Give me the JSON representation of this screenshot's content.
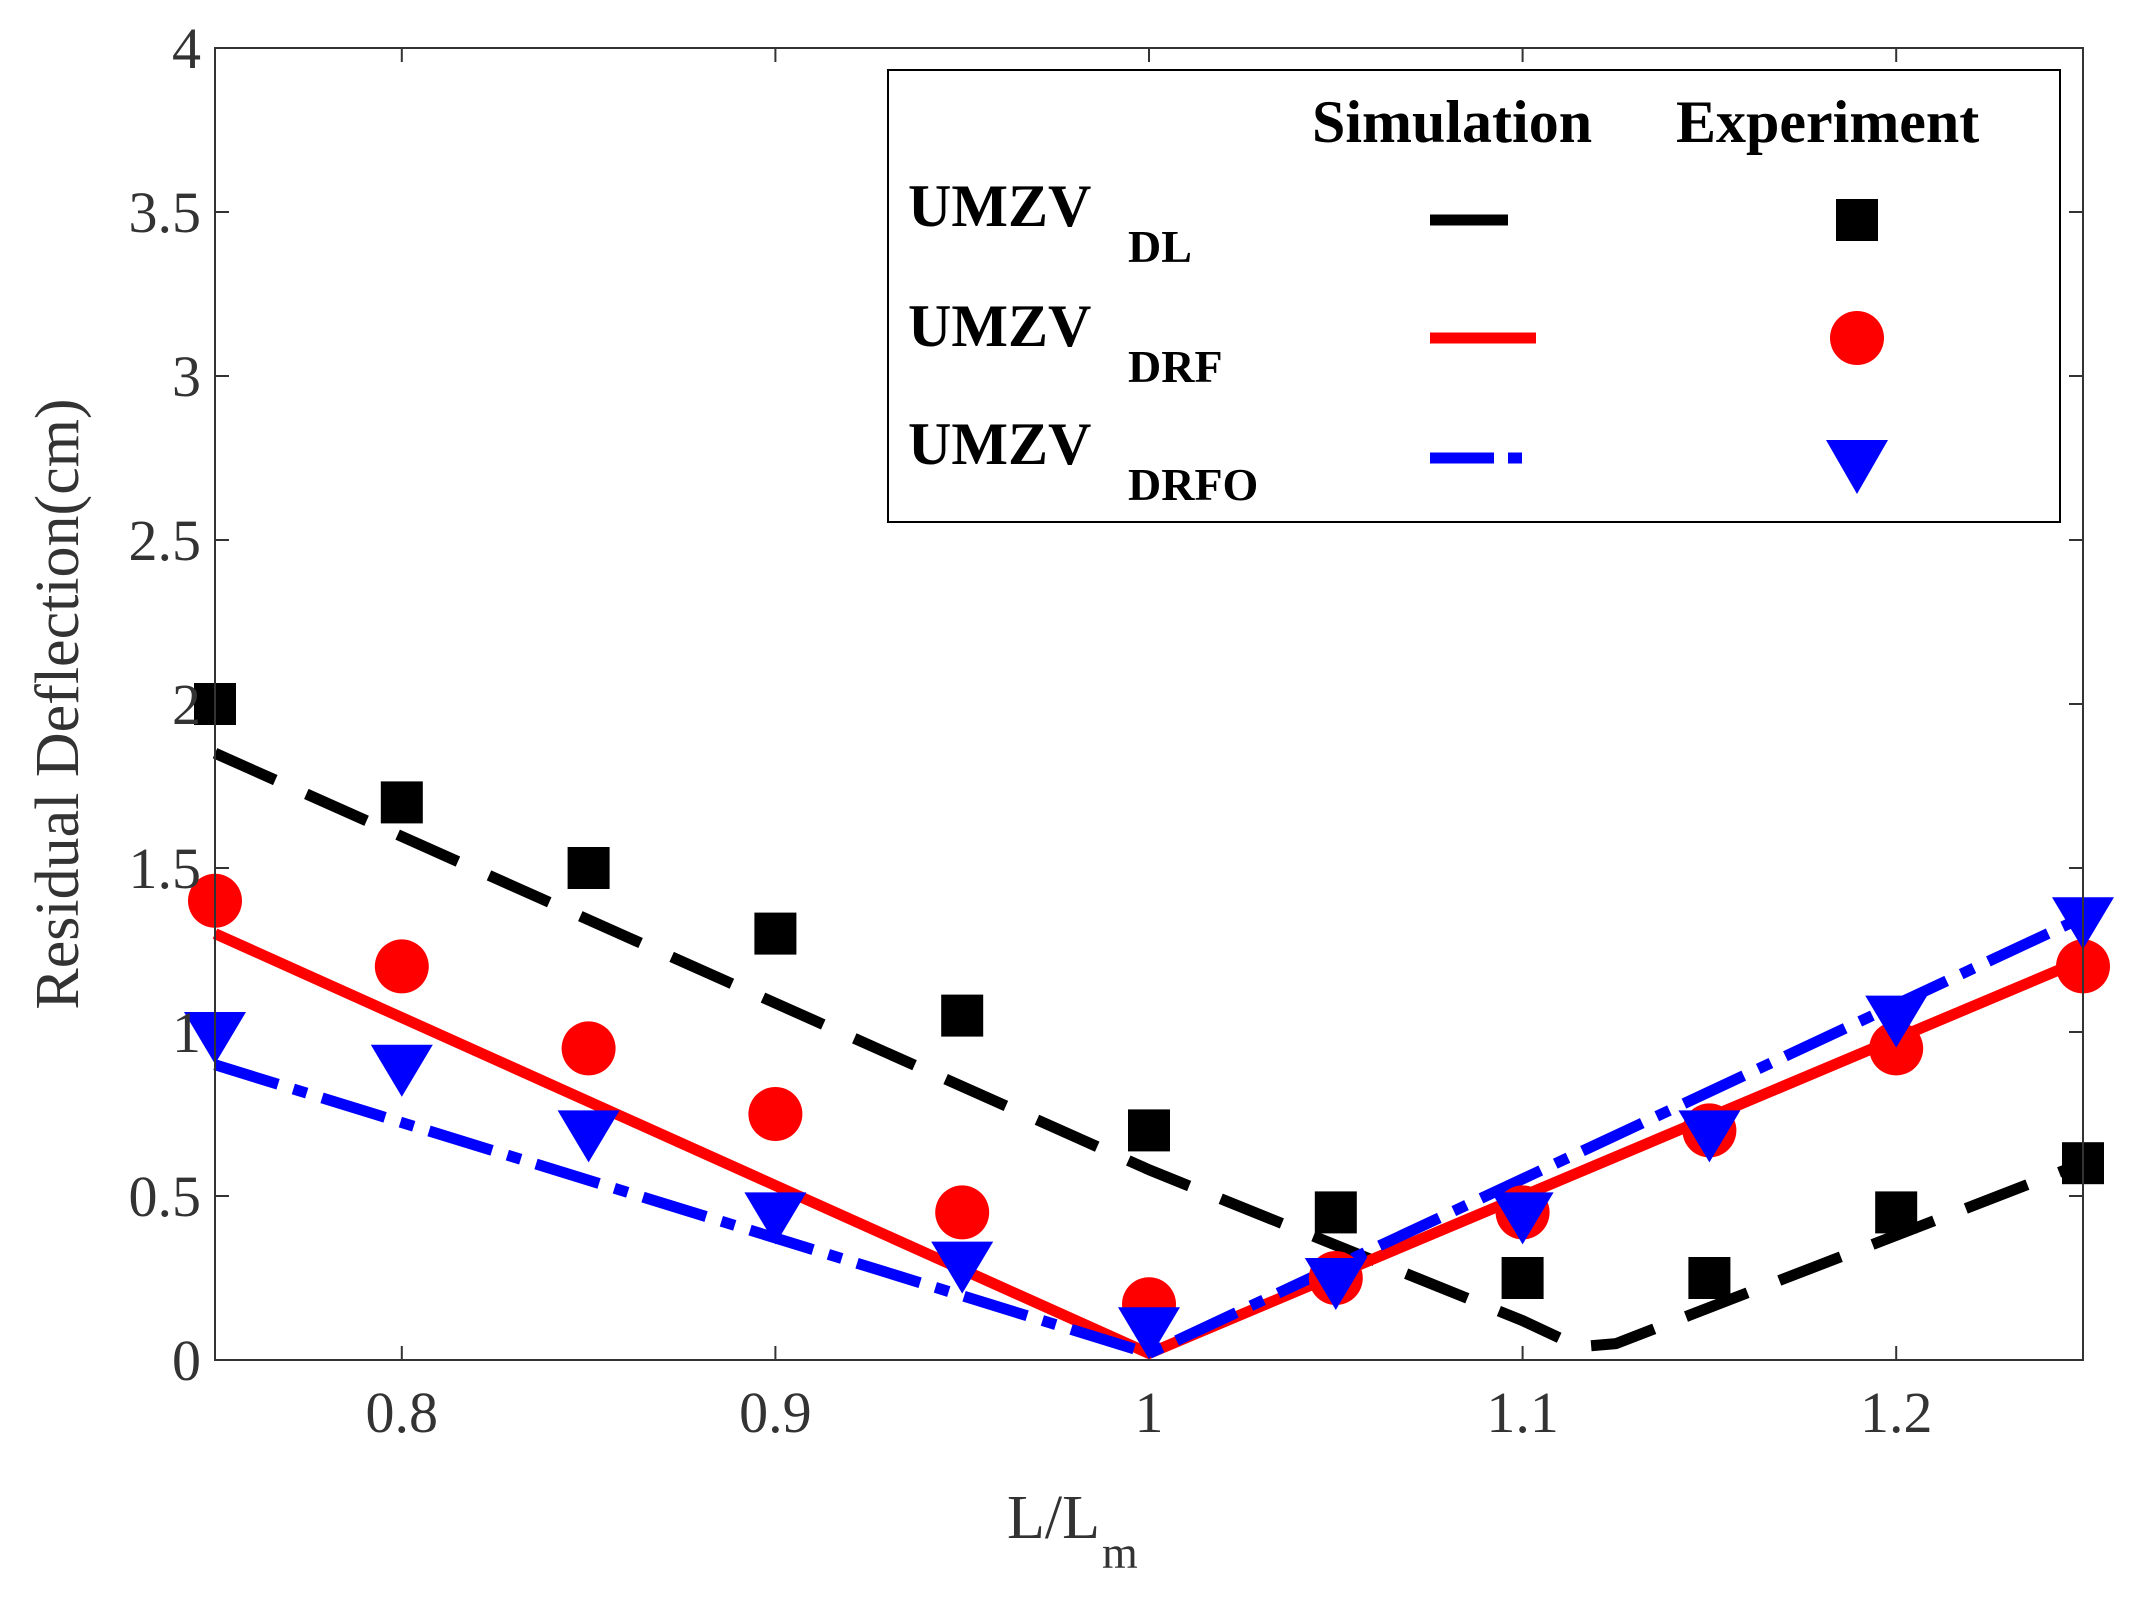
{
  "chart_data": {
    "type": "line",
    "title": "",
    "xlabel": "L/L",
    "xlabel_sub": "m",
    "ylabel": "Residual Deflection(cm)",
    "xlim": [
      0.75,
      1.25
    ],
    "ylim": [
      0,
      4
    ],
    "xticks": [
      0.8,
      0.9,
      1.0,
      1.1,
      1.2
    ],
    "xtick_labels": [
      "0.8",
      "0.9",
      "1",
      "1.1",
      "1.2"
    ],
    "yticks": [
      0,
      0.5,
      1,
      1.5,
      2,
      2.5,
      3,
      3.5,
      4
    ],
    "ytick_labels": [
      "0",
      "0.5",
      "1",
      "1.5",
      "2",
      "2.5",
      "3",
      "3.5",
      "4"
    ],
    "legend": {
      "position": "top-right",
      "col_simulation": "Simulation",
      "col_experiment": "Experiment",
      "entries": [
        {
          "name": "UMZV",
          "sub": "DL"
        },
        {
          "name": "UMZV",
          "sub": "DRF"
        },
        {
          "name": "UMZV",
          "sub": "DRFO"
        }
      ]
    },
    "series": [
      {
        "name": "UMZV_DL Simulation",
        "kind": "line",
        "style": "dashed",
        "color": "#000000",
        "x": [
          0.75,
          1.0,
          1.1,
          1.115,
          1.125,
          1.25
        ],
        "y": [
          1.85,
          0.58,
          0.12,
          0.04,
          0.05,
          0.6
        ]
      },
      {
        "name": "UMZV_DRF Simulation",
        "kind": "line",
        "style": "solid",
        "color": "#ff0000",
        "x": [
          0.75,
          1.0,
          1.25
        ],
        "y": [
          1.3,
          0.02,
          1.22
        ]
      },
      {
        "name": "UMZV_DRFO Simulation",
        "kind": "line",
        "style": "dashdot",
        "color": "#0000ff",
        "x": [
          0.75,
          1.0,
          1.25
        ],
        "y": [
          0.9,
          0.02,
          1.35
        ]
      },
      {
        "name": "UMZV_DL Experiment",
        "kind": "marker",
        "marker": "square",
        "color": "#000000",
        "x": [
          0.75,
          0.8,
          0.85,
          0.9,
          0.95,
          1.0,
          1.05,
          1.1,
          1.15,
          1.2,
          1.25
        ],
        "y": [
          2.0,
          1.7,
          1.5,
          1.3,
          1.05,
          0.7,
          0.45,
          0.25,
          0.25,
          0.45,
          0.6
        ]
      },
      {
        "name": "UMZV_DRF Experiment",
        "kind": "marker",
        "marker": "circle",
        "color": "#ff0000",
        "x": [
          0.75,
          0.8,
          0.85,
          0.9,
          0.95,
          1.0,
          1.05,
          1.1,
          1.15,
          1.2,
          1.25
        ],
        "y": [
          1.4,
          1.2,
          0.95,
          0.75,
          0.45,
          0.17,
          0.25,
          0.45,
          0.7,
          0.95,
          1.2
        ]
      },
      {
        "name": "UMZV_DRFO Experiment",
        "kind": "marker",
        "marker": "triangle-down",
        "color": "#0000ff",
        "x": [
          0.75,
          0.8,
          0.85,
          0.9,
          0.95,
          1.0,
          1.05,
          1.1,
          1.15,
          1.2,
          1.25
        ],
        "y": [
          1.0,
          0.9,
          0.7,
          0.45,
          0.3,
          0.1,
          0.25,
          0.45,
          0.7,
          1.05,
          1.35
        ]
      }
    ]
  }
}
